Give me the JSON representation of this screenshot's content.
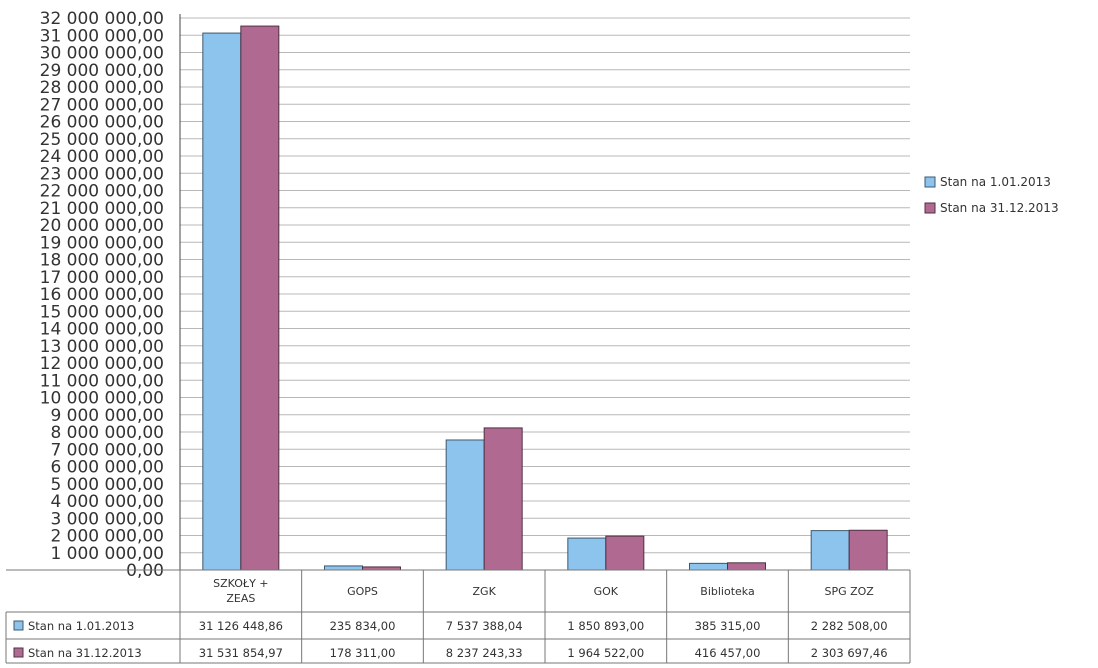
{
  "chart_data": {
    "type": "bar",
    "categories": [
      "SZKOŁY + ZEAS",
      "GOPS",
      "ZGK",
      "GOK",
      "Biblioteka",
      "SPG ZOZ"
    ],
    "series": [
      {
        "name": "Stan na 1.01.2013",
        "color": "#8cc4ee",
        "values": [
          31126448.86,
          235834.0,
          7537388.04,
          1850893.0,
          385315.0,
          2282508.0
        ],
        "labels": [
          "31 126 448,86",
          "235 834,00",
          "7 537 388,04",
          "1 850 893,00",
          "385 315,00",
          "2 282 508,00"
        ]
      },
      {
        "name": "Stan na 31.12.2013",
        "color": "#b06a92",
        "values": [
          31531854.97,
          178311.0,
          8237243.33,
          1964522.0,
          416457.0,
          2303697.46
        ],
        "labels": [
          "31 531 854,97",
          "178 311,00",
          "8 237 243,33",
          "1 964 522,00",
          "416 457,00",
          "2 303 697,46"
        ]
      }
    ],
    "ylim": [
      0,
      32000000
    ],
    "ytick_labels": [
      "0,00",
      "1 000 000,00",
      "2 000 000,00",
      "3 000 000,00",
      "4 000 000,00",
      "5 000 000,00",
      "6 000 000,00",
      "7 000 000,00",
      "8 000 000,00",
      "9 000 000,00",
      "10 000 000,00",
      "11 000 000,00",
      "12 000 000,00",
      "13 000 000,00",
      "14 000 000,00",
      "15 000 000,00",
      "16 000 000,00",
      "17 000 000,00",
      "18 000 000,00",
      "19 000 000,00",
      "20 000 000,00",
      "21 000 000,00",
      "22 000 000,00",
      "23 000 000,00",
      "24 000 000,00",
      "25 000 000,00",
      "26 000 000,00",
      "27 000 000,00",
      "28 000 000,00",
      "29 000 000,00",
      "30 000 000,00",
      "31 000 000,00",
      "32 000 000,00"
    ],
    "grid": true,
    "legend_position": "right",
    "data_table": true
  }
}
